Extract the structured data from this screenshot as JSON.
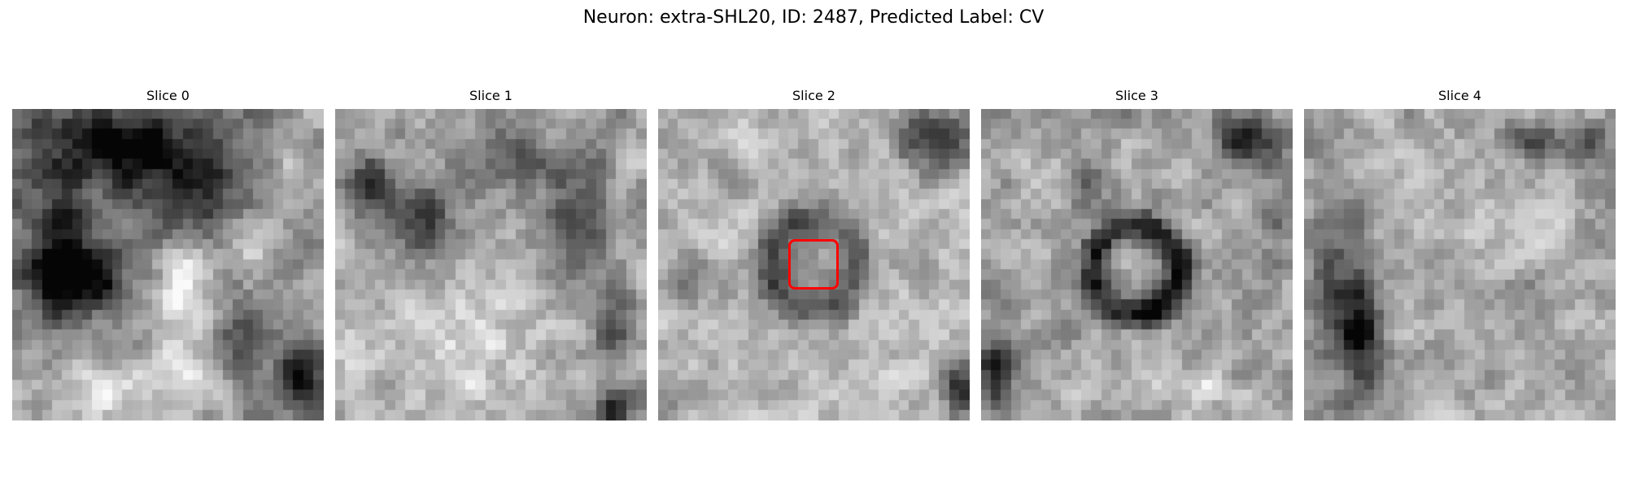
{
  "figure": {
    "title": "Neuron: extra-SHL20, ID: 2487, Predicted Label: CV"
  },
  "slices": [
    {
      "label": "Slice 0"
    },
    {
      "label": "Slice 1"
    },
    {
      "label": "Slice 2",
      "has_roi": true
    },
    {
      "label": "Slice 3"
    },
    {
      "label": "Slice 4"
    }
  ],
  "colors": {
    "roi": "#ff0000",
    "colormap": "grayscale"
  }
}
